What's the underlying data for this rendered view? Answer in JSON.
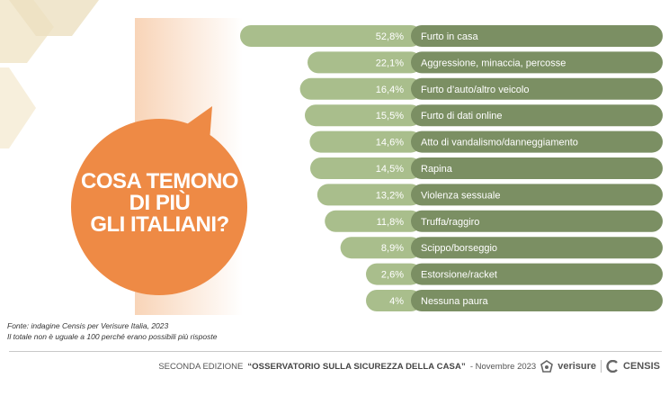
{
  "chart_data": {
    "type": "bar",
    "orientation": "horizontal",
    "categories": [
      "Furto in casa",
      "Aggressione, minaccia, percosse",
      "Furto d’auto/altro veicolo",
      "Furto di dati online",
      "Atto di vandalismo/danneggiamento",
      "Rapina",
      "Violenza sessuale",
      "Truffa/raggiro",
      "Scippo/borseggio",
      "Estorsione/racket",
      "Nessuna paura"
    ],
    "values": [
      52.8,
      22.1,
      16.4,
      15.5,
      14.6,
      14.5,
      13.2,
      11.8,
      8.9,
      2.6,
      4
    ],
    "value_labels": [
      "52,8%",
      "22,1%",
      "16,4%",
      "15,5%",
      "14,6%",
      "14,5%",
      "13,2%",
      "11,8%",
      "8,9%",
      "2,6%",
      "4%"
    ],
    "title": "COSA TEMONO DI PIÙ GLI ITALIANI?",
    "xlabel": "",
    "ylabel": "",
    "grid": false,
    "colors": {
      "value_bar": "#a9be8c",
      "label_bar": "#7b8f63"
    }
  },
  "bubble": {
    "lines": [
      "COSA TEMONO",
      "DI PIÙ",
      "GLI ITALIANI?"
    ],
    "color": "#ee8a45"
  },
  "source": {
    "line1": "Fonte: indagine Censis per Verisure Italia, 2023",
    "line2": "Il totale non è uguale a 100 perché erano possibili più risposte"
  },
  "footer": {
    "prefix": "SECONDA EDIZIONE",
    "title": "“OSSERVATORIO SULLA SICUREZZA DELLA CASA”",
    "suffix": "- Novembre 2023",
    "brand1": "verisure",
    "brand2": "CENSIS",
    "brand1_icon": "verisure-logo-icon",
    "brand2_icon": "censis-logo-icon"
  }
}
